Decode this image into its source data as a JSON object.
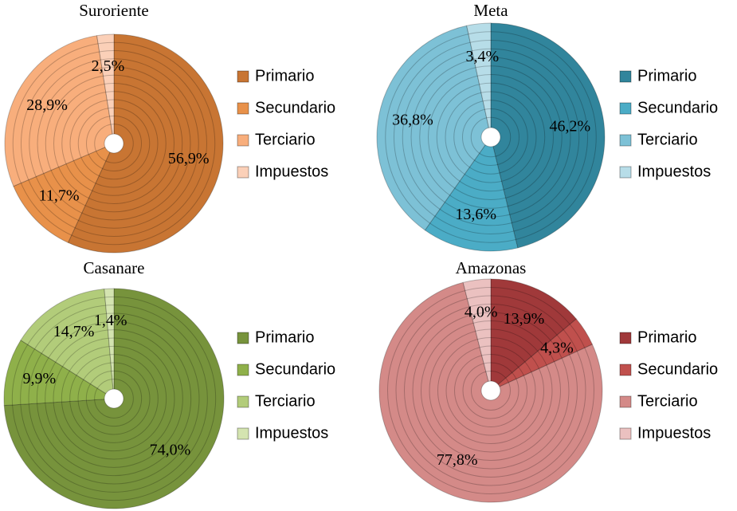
{
  "chart_data": [
    {
      "type": "pie",
      "title": "Suroriente",
      "categories": [
        "Primario",
        "Secundario",
        "Terciario",
        "Impuestos"
      ],
      "values": [
        56.9,
        11.7,
        28.9,
        2.5
      ],
      "value_labels": [
        "56,9%",
        "11,7%",
        "28,9%",
        "2,5%"
      ],
      "colors": [
        "#c87533",
        "#e8914a",
        "#f8ae7c",
        "#fbd0b8"
      ]
    },
    {
      "type": "pie",
      "title": "Meta",
      "categories": [
        "Primario",
        "Secundario",
        "Terciario",
        "Impuestos"
      ],
      "values": [
        46.2,
        13.6,
        36.8,
        3.4
      ],
      "value_labels": [
        "46,2%",
        "13,6%",
        "36,8%",
        "3,4%"
      ],
      "colors": [
        "#31859c",
        "#4bacc6",
        "#7dc1d6",
        "#b7dde8"
      ]
    },
    {
      "type": "pie",
      "title": "Casanare",
      "categories": [
        "Primario",
        "Secundario",
        "Terciario",
        "Impuestos"
      ],
      "values": [
        74.0,
        9.9,
        14.7,
        1.4
      ],
      "value_labels": [
        "74,0%",
        "9,9%",
        "14,7%",
        "1,4%"
      ],
      "colors": [
        "#77933c",
        "#8fb04a",
        "#b2cc7a",
        "#d4e4b0"
      ]
    },
    {
      "type": "pie",
      "title": "Amazonas",
      "categories": [
        "Primario",
        "Secundario",
        "Terciario",
        "Impuestos"
      ],
      "values": [
        13.9,
        4.3,
        77.8,
        4.0
      ],
      "value_labels": [
        "13,9%",
        "4,3%",
        "77,8%",
        "4,0%"
      ],
      "colors": [
        "#a0393a",
        "#c0504d",
        "#d48a88",
        "#ebc1c0"
      ]
    }
  ]
}
